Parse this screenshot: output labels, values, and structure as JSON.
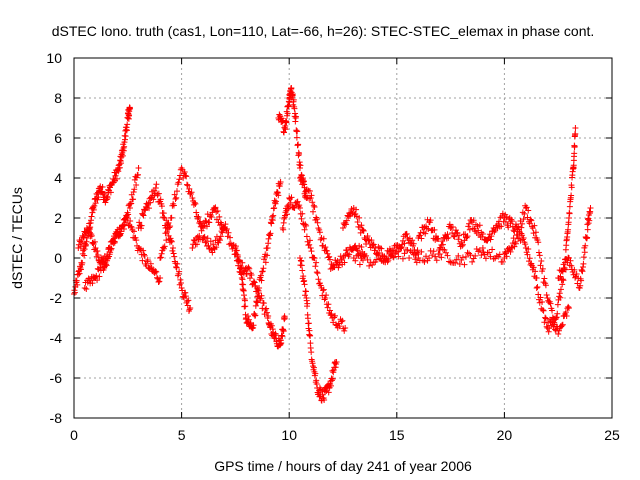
{
  "chart_data": {
    "type": "scatter",
    "title": "dSTEC Iono. truth (cas1, Lon=110, Lat=-66, h=26): STEC-STEC_elemax in phase cont.",
    "xlabel": "GPS time / hours of day 241 of year 2006",
    "ylabel": "dSTEC  / TECUs",
    "xlim": [
      0,
      25
    ],
    "ylim": [
      -8,
      10
    ],
    "x_ticks": [
      0,
      5,
      10,
      15,
      20,
      25
    ],
    "x_tick_labels": [
      "0",
      "5",
      "10",
      "15",
      "20",
      "25"
    ],
    "y_ticks": [
      -8,
      -6,
      -4,
      -2,
      0,
      2,
      4,
      6,
      8,
      10
    ],
    "y_tick_labels": [
      "-8",
      "-6",
      "-4",
      "-2",
      "0",
      "2",
      "4",
      "6",
      "8",
      "10"
    ],
    "grid": true,
    "marker": "+",
    "marker_color": "#ff0000",
    "series": [
      {
        "name": "dSTEC",
        "arcs": [
          {
            "x": [
              0.0,
              0.3,
              0.6,
              0.9,
              1.2,
              1.5,
              1.8,
              2.1,
              2.3,
              2.5,
              2.6
            ],
            "y": [
              -1.8,
              -0.5,
              1.0,
              2.5,
              3.5,
              3.0,
              3.8,
              4.5,
              5.5,
              7.0,
              7.5
            ]
          },
          {
            "x": [
              0.2,
              0.6,
              1.0,
              1.4,
              1.8,
              2.2,
              2.6,
              3.0
            ],
            "y": [
              0.5,
              1.5,
              0.5,
              -0.5,
              0.8,
              1.5,
              2.5,
              4.5
            ]
          },
          {
            "x": [
              0.5,
              1.0,
              1.5,
              2.0,
              2.5,
              3.0,
              3.5,
              4.0
            ],
            "y": [
              -1.5,
              -1.0,
              0.0,
              1.2,
              2.0,
              0.5,
              -0.5,
              -1.0
            ]
          },
          {
            "x": [
              3.0,
              3.4,
              3.8,
              4.2,
              4.6,
              5.0,
              5.4
            ],
            "y": [
              1.5,
              2.5,
              3.5,
              2.0,
              0.5,
              -1.5,
              -2.5
            ]
          },
          {
            "x": [
              4.0,
              4.5,
              5.0,
              5.5,
              6.0,
              6.5,
              7.0
            ],
            "y": [
              0.0,
              2.0,
              4.5,
              3.0,
              1.0,
              0.5,
              1.5
            ]
          },
          {
            "x": [
              5.5,
              6.0,
              6.5,
              7.0,
              7.5,
              8.0
            ],
            "y": [
              0.5,
              1.5,
              2.5,
              1.5,
              0.2,
              -0.8
            ]
          },
          {
            "x": [
              7.5,
              7.8,
              8.0,
              8.3,
              8.6,
              9.0,
              9.3,
              9.6
            ],
            "y": [
              0.5,
              -1.0,
              -3.0,
              -3.5,
              -1.5,
              0.5,
              2.5,
              3.8
            ]
          },
          {
            "x": [
              8.0,
              8.5,
              9.0,
              9.3,
              9.6,
              9.8
            ],
            "y": [
              -0.5,
              -1.5,
              -3.0,
              -4.0,
              -4.3,
              -3.0
            ]
          },
          {
            "x": [
              9.5,
              9.8,
              10.0,
              10.1,
              10.3,
              10.5,
              10.8
            ],
            "y": [
              7.0,
              6.5,
              8.0,
              8.5,
              7.0,
              4.5,
              3.0
            ]
          },
          {
            "x": [
              9.7,
              10.0,
              10.5,
              11.0,
              11.5,
              12.0,
              12.6
            ],
            "y": [
              1.5,
              3.0,
              2.5,
              0.5,
              -1.5,
              -3.0,
              -3.5
            ]
          },
          {
            "x": [
              10.5,
              10.8,
              11.0,
              11.3,
              11.6,
              11.9,
              12.2
            ],
            "y": [
              0.0,
              -2.0,
              -4.5,
              -6.5,
              -7.0,
              -6.3,
              -5.2
            ]
          },
          {
            "x": [
              10.5,
              11.0,
              11.5,
              12.0,
              12.5,
              13.0,
              13.5
            ],
            "y": [
              4.0,
              3.0,
              1.0,
              -0.5,
              0.0,
              0.5,
              0.2
            ]
          },
          {
            "x": [
              12.5,
              13.0,
              13.5,
              14.0,
              14.5,
              15.0,
              15.5,
              16.0
            ],
            "y": [
              1.5,
              2.5,
              1.0,
              0.5,
              0.0,
              0.5,
              1.0,
              0.2
            ]
          },
          {
            "x": [
              13.0,
              14.0,
              15.0,
              16.0,
              17.0,
              18.0,
              19.0,
              20.0
            ],
            "y": [
              0.0,
              -0.2,
              0.3,
              0.0,
              0.2,
              -0.1,
              0.3,
              0.0
            ]
          },
          {
            "x": [
              16.0,
              16.5,
              17.0,
              17.5,
              18.0,
              18.5,
              19.0
            ],
            "y": [
              1.0,
              1.8,
              0.5,
              1.5,
              0.8,
              1.8,
              1.2
            ]
          },
          {
            "x": [
              19.0,
              19.5,
              20.0,
              20.5,
              21.0,
              21.5
            ],
            "y": [
              0.5,
              1.5,
              2.0,
              1.5,
              0.5,
              -1.0
            ]
          },
          {
            "x": [
              20.0,
              20.5,
              21.0,
              21.5,
              22.0,
              22.5,
              23.0
            ],
            "y": [
              0.2,
              0.8,
              2.5,
              1.0,
              -2.0,
              -3.8,
              -2.5
            ]
          },
          {
            "x": [
              21.5,
              22.0,
              22.4,
              22.8,
              23.0,
              23.2,
              23.3
            ],
            "y": [
              -1.5,
              -3.5,
              -3.0,
              -0.5,
              2.0,
              4.5,
              6.5
            ]
          },
          {
            "x": [
              22.5,
              23.0,
              23.5,
              23.8,
              24.0
            ],
            "y": [
              -1.0,
              0.0,
              -1.5,
              1.0,
              2.5
            ]
          }
        ]
      }
    ]
  }
}
